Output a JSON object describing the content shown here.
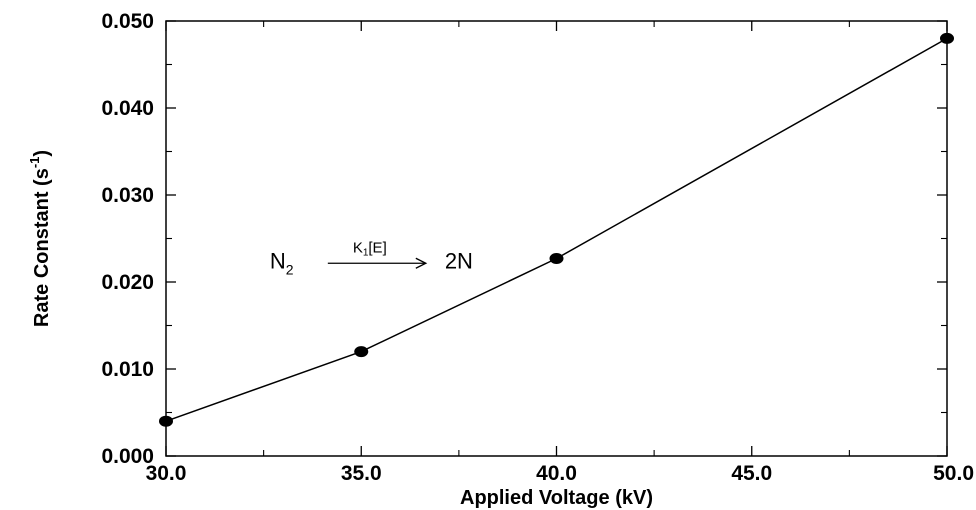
{
  "chart_data": {
    "type": "line",
    "title": "",
    "xlabel": "Applied Voltage (kV)",
    "ylabel": "Rate Constant (s",
    "ylabel_sup": "-1",
    "ylabel_close": ")",
    "xlim": [
      30.0,
      50.0
    ],
    "ylim": [
      0.0,
      0.05
    ],
    "xticks": [
      30.0,
      35.0,
      40.0,
      45.0,
      50.0
    ],
    "xtick_labels": [
      "30.0",
      "35.0",
      "40.0",
      "45.0",
      "50.0"
    ],
    "yticks": [
      0.0,
      0.01,
      0.02,
      0.03,
      0.04,
      0.05
    ],
    "ytick_labels": [
      "0.000",
      "0.010",
      "0.020",
      "0.030",
      "0.040",
      "0.050"
    ],
    "grid": false,
    "legend": "none",
    "series": [
      {
        "x": [
          30.0,
          35.0,
          40.0,
          50.0
        ],
        "y": [
          0.004,
          0.012,
          0.0227,
          0.048
        ]
      }
    ],
    "annotation": {
      "reactant": "N",
      "reactant_sub": "2",
      "rate_k": "K",
      "rate_sub": "1",
      "rate_rest": "[E]",
      "product": "2N",
      "at_x": 36.5,
      "at_y": 0.0225
    }
  },
  "colors": {
    "ink": "#000000",
    "background": "#ffffff"
  }
}
